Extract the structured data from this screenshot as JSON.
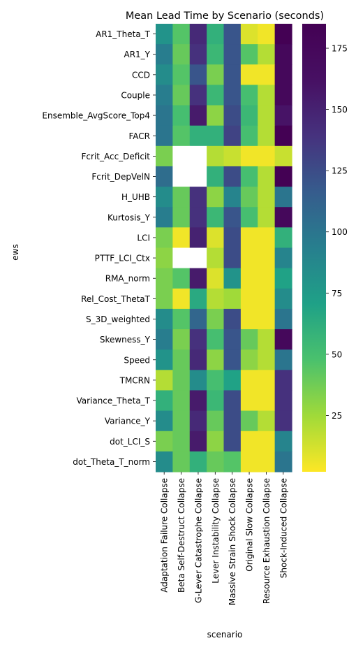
{
  "chart_data": {
    "type": "heatmap",
    "title": "Mean Lead Time by Scenario (seconds)",
    "xlabel": "scenario",
    "ylabel": "ews",
    "columns": [
      "Adaptation Failure Collapse",
      "Beta Self-Destruct Collapse",
      "G-Lever Catastrophe Collapse",
      "Lever Instability Collapse",
      "Massive Strain Shock Collapse",
      "Original Slow Collapse",
      "Resource Exhaustion Collapse",
      "Shock-Induced Collapse"
    ],
    "rows": [
      "AR1_Theta_T",
      "AR1_Y",
      "CCD",
      "Couple",
      "Ensemble_AvgScore_Top4",
      "FACR",
      "Fcrit_Acc_Deficit",
      "Fcrit_DepVelN",
      "H_UHB",
      "Kurtosis_Y",
      "LCI",
      "PTTF_LCI_Ctx",
      "RMA_norm",
      "Rel_Cost_ThetaT",
      "S_3D_weighted",
      "Skewness_Y",
      "Speed",
      "TMCRN",
      "Variance_Theta_T",
      "Variance_Y",
      "dot_LCI_S",
      "dot_Theta_T_norm"
    ],
    "values": [
      [
        80,
        45,
        145,
        60,
        120,
        10,
        5,
        185
      ],
      [
        95,
        40,
        140,
        55,
        120,
        45,
        20,
        175
      ],
      [
        85,
        45,
        120,
        35,
        120,
        5,
        5,
        175
      ],
      [
        95,
        40,
        140,
        55,
        120,
        50,
        20,
        175
      ],
      [
        100,
        50,
        155,
        30,
        125,
        55,
        20,
        160
      ],
      [
        100,
        45,
        60,
        60,
        130,
        50,
        20,
        185
      ],
      [
        35,
        null,
        null,
        20,
        15,
        5,
        5,
        15
      ],
      [
        105,
        null,
        null,
        60,
        125,
        50,
        20,
        185
      ],
      [
        85,
        40,
        140,
        30,
        90,
        40,
        20,
        100
      ],
      [
        95,
        40,
        140,
        55,
        120,
        50,
        20,
        175
      ],
      [
        35,
        5,
        150,
        10,
        125,
        5,
        5,
        60
      ],
      [
        30,
        null,
        null,
        20,
        125,
        5,
        5,
        90
      ],
      [
        35,
        45,
        155,
        10,
        80,
        5,
        5,
        70
      ],
      [
        35,
        5,
        65,
        20,
        25,
        5,
        5,
        85
      ],
      [
        85,
        45,
        110,
        35,
        125,
        5,
        5,
        100
      ],
      [
        95,
        35,
        140,
        50,
        120,
        40,
        20,
        175
      ],
      [
        80,
        40,
        145,
        30,
        120,
        30,
        20,
        100
      ],
      [
        20,
        40,
        85,
        50,
        70,
        5,
        5,
        140
      ],
      [
        60,
        40,
        155,
        55,
        125,
        5,
        5,
        140
      ],
      [
        85,
        40,
        145,
        40,
        125,
        40,
        20,
        140
      ],
      [
        35,
        40,
        155,
        30,
        125,
        5,
        5,
        90
      ],
      [
        85,
        40,
        60,
        40,
        45,
        5,
        5,
        100
      ]
    ],
    "colormap": "viridis_r",
    "vmin": 2,
    "vmax": 185,
    "colorbar_ticks": [
      25,
      50,
      75,
      100,
      125,
      150,
      175
    ],
    "missing_color": "#ffffff"
  }
}
